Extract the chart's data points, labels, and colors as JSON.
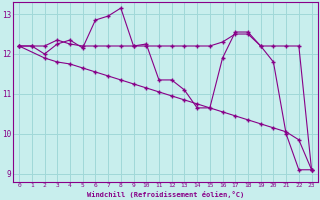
{
  "background_color": "#c8eeed",
  "grid_color": "#a0d8d8",
  "line_color": "#880088",
  "xlim": [
    -0.5,
    23.5
  ],
  "ylim": [
    8.8,
    13.3
  ],
  "yticks": [
    9,
    10,
    11,
    12,
    13
  ],
  "xticks": [
    0,
    1,
    2,
    3,
    4,
    5,
    6,
    7,
    8,
    9,
    10,
    11,
    12,
    13,
    14,
    15,
    16,
    17,
    18,
    19,
    20,
    21,
    22,
    23
  ],
  "xlabel": "Windchill (Refroidissement éolien,°C)",
  "series1_x": [
    0,
    1,
    2,
    3,
    4,
    5,
    6,
    7,
    8,
    9,
    10,
    11,
    12,
    13,
    14,
    15,
    16,
    17,
    18,
    19,
    20,
    21,
    22,
    23
  ],
  "series1_y": [
    12.2,
    12.2,
    12.2,
    12.35,
    12.25,
    12.2,
    12.2,
    12.2,
    12.2,
    12.2,
    12.2,
    12.2,
    12.2,
    12.2,
    12.2,
    12.2,
    12.3,
    12.5,
    12.5,
    12.2,
    12.2,
    12.2,
    12.2,
    9.1
  ],
  "series2_x": [
    0,
    1,
    2,
    3,
    4,
    5,
    6,
    7,
    8,
    9,
    10,
    11,
    12,
    13,
    14,
    15,
    16,
    17,
    18,
    19,
    20,
    21,
    22,
    23
  ],
  "series2_y": [
    12.2,
    12.2,
    12.0,
    12.25,
    12.35,
    12.15,
    12.85,
    12.95,
    13.15,
    12.2,
    12.25,
    11.35,
    11.35,
    11.1,
    10.65,
    10.65,
    11.9,
    12.55,
    12.55,
    12.2,
    11.8,
    10.0,
    9.1,
    9.1
  ],
  "series3_x": [
    0,
    2,
    3,
    4,
    5,
    6,
    7,
    8,
    9,
    10,
    11,
    12,
    13,
    14,
    15,
    16,
    17,
    18,
    19,
    20,
    21,
    22,
    23
  ],
  "series3_y": [
    12.2,
    11.9,
    11.8,
    11.75,
    11.65,
    11.55,
    11.45,
    11.35,
    11.25,
    11.15,
    11.05,
    10.95,
    10.85,
    10.75,
    10.65,
    10.55,
    10.45,
    10.35,
    10.25,
    10.15,
    10.05,
    9.85,
    9.1
  ]
}
